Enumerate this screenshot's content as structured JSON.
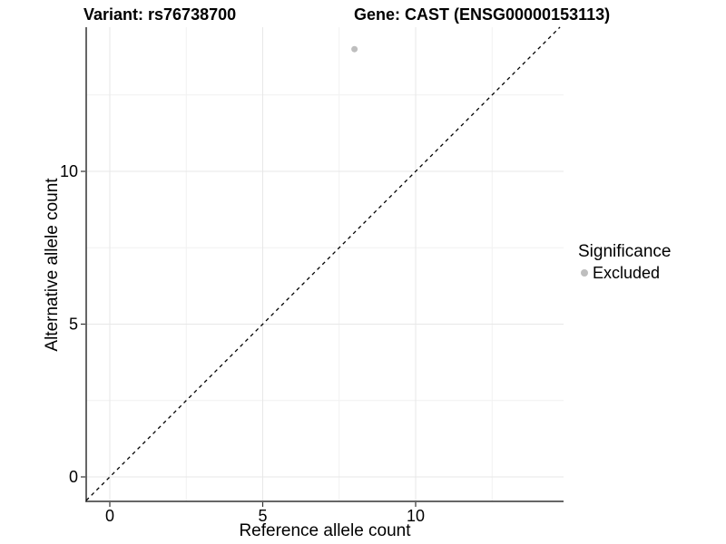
{
  "figure": {
    "titles": {
      "variant": "Variant: rs76738700",
      "gene": "Gene: CAST (ENSG00000153113)"
    }
  },
  "axes": {
    "x": {
      "label": "Reference allele count"
    },
    "y": {
      "label": "Alternative allele count"
    }
  },
  "legend": {
    "title": "Significance",
    "items": [
      {
        "label": "Excluded",
        "color": "#bebebe",
        "marker": "circle"
      }
    ]
  },
  "chart_data": {
    "type": "scatter",
    "title": "Variant: rs76738700 | Gene: CAST (ENSG00000153113)",
    "xlabel": "Reference allele count",
    "ylabel": "Alternative allele count",
    "x_ticks": [
      0,
      5,
      10
    ],
    "y_ticks": [
      0,
      5,
      10
    ],
    "minor_ticks_x": [
      2.5,
      7.5,
      12.5
    ],
    "minor_ticks_y": [
      2.5,
      7.5,
      12.5
    ],
    "xlim": [
      -0.77,
      14.84
    ],
    "ylim": [
      -0.8,
      14.72
    ],
    "grid": "major and minor gridlines on, very light gray",
    "legend_position": "right",
    "series": [
      {
        "name": "Excluded",
        "color": "#bebebe",
        "points": [
          {
            "x": 8,
            "y": 14
          }
        ]
      }
    ],
    "reference_line": {
      "type": "identity",
      "equation": "y = x",
      "style": "dashed",
      "color": "#000000"
    },
    "colors": {
      "grid_major": "#e7e7e7",
      "grid_minor": "#f1f1f1",
      "axis_line": "#333333",
      "tick": "#333333",
      "point": "#bebebe",
      "text": "#000000"
    }
  }
}
